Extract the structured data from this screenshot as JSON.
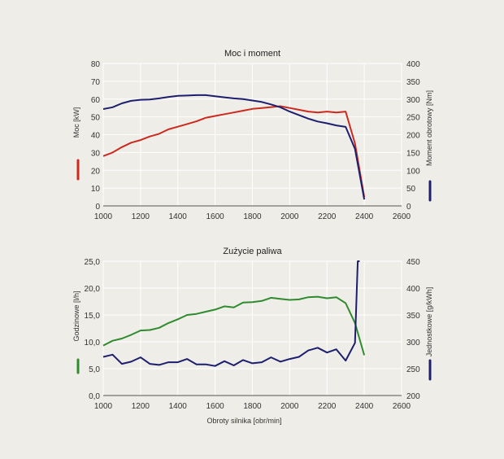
{
  "chart_data": [
    {
      "type": "line",
      "title": "Moc i moment",
      "xlabel": "",
      "xlim": [
        1000,
        2600
      ],
      "xticks": [
        1000,
        1200,
        1400,
        1600,
        1800,
        2000,
        2200,
        2400,
        2600
      ],
      "ylabel_left": "Moc [kW]",
      "ylim_left": [
        0,
        80
      ],
      "yticks_left": [
        0,
        10,
        20,
        30,
        40,
        50,
        60,
        70,
        80
      ],
      "ylabel_right": "Moment obrotowy [Nm]",
      "ylim_right": [
        0,
        400
      ],
      "yticks_right": [
        0,
        50,
        100,
        150,
        200,
        250,
        300,
        350,
        400
      ],
      "grid": true,
      "series": [
        {
          "name": "Moc [kW]",
          "axis": "left",
          "color": "#cc2a1e",
          "x": [
            1000,
            1050,
            1100,
            1150,
            1200,
            1250,
            1300,
            1350,
            1400,
            1450,
            1500,
            1550,
            1600,
            1650,
            1700,
            1750,
            1800,
            1850,
            1900,
            1950,
            2000,
            2050,
            2100,
            2150,
            2200,
            2250,
            2300,
            2350,
            2400
          ],
          "y": [
            28,
            30,
            33,
            35.5,
            37,
            39,
            40.5,
            43,
            44.5,
            46,
            47.5,
            49.5,
            50.5,
            51.5,
            52.5,
            53.5,
            54.5,
            55,
            55.5,
            56,
            55,
            54,
            53,
            52.5,
            53,
            52.5,
            53,
            35,
            5
          ]
        },
        {
          "name": "Moment obrotowy [Nm]",
          "axis": "right",
          "color": "#1e1e6e",
          "x": [
            1000,
            1050,
            1100,
            1150,
            1200,
            1250,
            1300,
            1350,
            1400,
            1450,
            1500,
            1550,
            1600,
            1650,
            1700,
            1750,
            1800,
            1850,
            1900,
            1950,
            2000,
            2050,
            2100,
            2150,
            2200,
            2250,
            2300,
            2350,
            2400
          ],
          "y": [
            272,
            277,
            288,
            295,
            298,
            299,
            302,
            306,
            309,
            310,
            311,
            311,
            308,
            305,
            302,
            300,
            296,
            292,
            285,
            277,
            265,
            255,
            245,
            237,
            232,
            226,
            222,
            160,
            18
          ]
        }
      ]
    },
    {
      "type": "line",
      "title": "Zużycie paliwa",
      "xlabel": "Obroty silnika [obr/min]",
      "xlim": [
        1000,
        2600
      ],
      "xticks": [
        1000,
        1200,
        1400,
        1600,
        1800,
        2000,
        2200,
        2400,
        2600
      ],
      "ylabel_left": "Godzinowe [l/h]",
      "ylim_left": [
        0,
        25
      ],
      "yticks_left": [
        "0,0",
        "5,0",
        "10,0",
        "15,0",
        "20,0",
        "25,0"
      ],
      "ylabel_right": "Jednostkowe [g/kWh]",
      "ylim_right": [
        200,
        450
      ],
      "yticks_right": [
        200,
        250,
        300,
        350,
        400,
        450
      ],
      "grid": true,
      "series": [
        {
          "name": "Godzinowe [l/h]",
          "axis": "left",
          "color": "#2e8b2e",
          "x": [
            1000,
            1050,
            1100,
            1150,
            1200,
            1250,
            1300,
            1350,
            1400,
            1450,
            1500,
            1550,
            1600,
            1650,
            1700,
            1750,
            1800,
            1850,
            1900,
            1950,
            2000,
            2050,
            2100,
            2150,
            2200,
            2250,
            2300,
            2350,
            2400
          ],
          "y": [
            9.3,
            10.2,
            10.6,
            11.3,
            12.1,
            12.2,
            12.6,
            13.5,
            14.2,
            15,
            15.2,
            15.6,
            16,
            16.6,
            16.4,
            17.3,
            17.4,
            17.6,
            18.2,
            18,
            17.8,
            17.9,
            18.3,
            18.4,
            18.1,
            18.3,
            17.2,
            13.5,
            7.5
          ]
        },
        {
          "name": "Jednostkowe [g/kWh]",
          "axis": "right",
          "color": "#1e1e6e",
          "x": [
            1000,
            1050,
            1100,
            1150,
            1200,
            1250,
            1300,
            1350,
            1400,
            1450,
            1500,
            1550,
            1600,
            1650,
            1700,
            1750,
            1800,
            1850,
            1900,
            1950,
            2000,
            2050,
            2100,
            2150,
            2200,
            2250,
            2300,
            2350,
            2365,
            2375
          ],
          "y": [
            272,
            276,
            259,
            263,
            271,
            259,
            257,
            262,
            262,
            268,
            258,
            258,
            255,
            264,
            256,
            266,
            260,
            262,
            271,
            263,
            268,
            272,
            284,
            289,
            280,
            286,
            265,
            298,
            450,
            450
          ]
        }
      ]
    }
  ]
}
